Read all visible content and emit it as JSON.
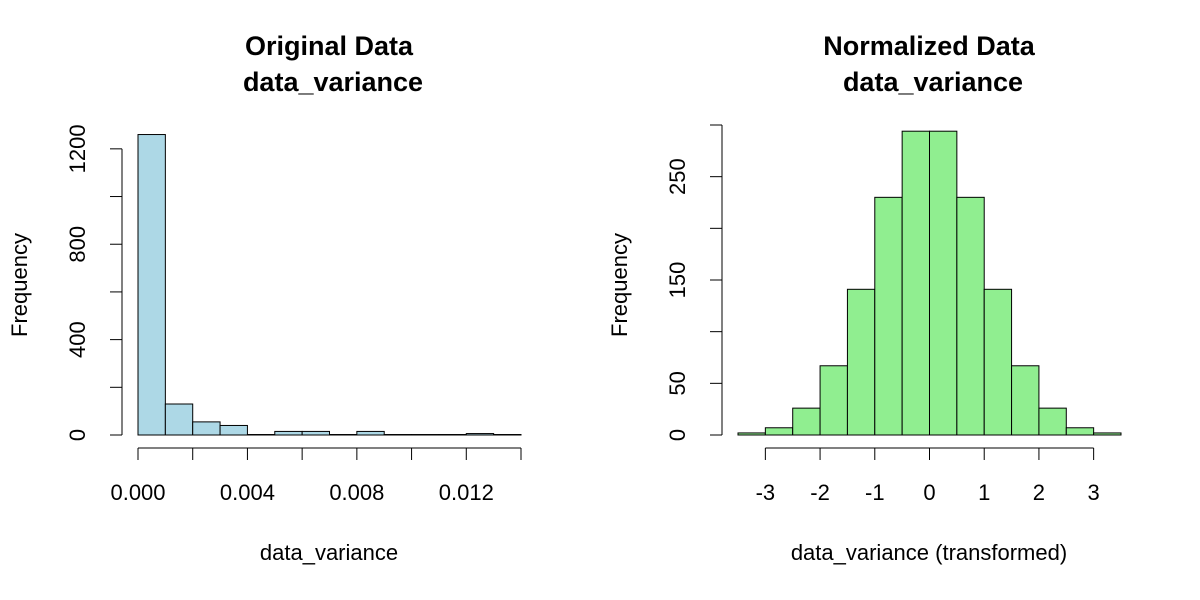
{
  "chart_data": [
    {
      "type": "bar",
      "title_line1": "Original Data",
      "title_line2": "data_variance",
      "xlabel": "data_variance",
      "ylabel": "Frequency",
      "bar_color": "#ADD8E6",
      "bin_edges": [
        0.0,
        0.001,
        0.002,
        0.003,
        0.004,
        0.005,
        0.006,
        0.007,
        0.008,
        0.009,
        0.01,
        0.011,
        0.012,
        0.013,
        0.014
      ],
      "values": [
        1260,
        130,
        55,
        40,
        2,
        15,
        15,
        2,
        15,
        2,
        2,
        2,
        6,
        2
      ],
      "xlim": [
        0.0,
        0.014
      ],
      "ylim": [
        0,
        1300
      ],
      "x_ticks": [
        0.0,
        0.002,
        0.004,
        0.006,
        0.008,
        0.01,
        0.012,
        0.014
      ],
      "x_tick_labels": [
        "0.000",
        "",
        "0.004",
        "",
        "0.008",
        "",
        "0.012",
        ""
      ],
      "y_ticks": [
        0,
        200,
        400,
        600,
        800,
        1000,
        1200
      ],
      "y_tick_labels": [
        "0",
        "",
        "400",
        "",
        "800",
        "",
        "1200"
      ]
    },
    {
      "type": "bar",
      "title_line1": "Normalized Data",
      "title_line2": "data_variance",
      "xlabel": "data_variance (transformed)",
      "ylabel": "Frequency",
      "bar_color": "#90EE90",
      "bin_edges": [
        -3.5,
        -3.0,
        -2.5,
        -2.0,
        -1.5,
        -1.0,
        -0.5,
        0.0,
        0.5,
        1.0,
        1.5,
        2.0,
        2.5,
        3.0,
        3.5
      ],
      "values": [
        2,
        7,
        26,
        67,
        141,
        230,
        294,
        294,
        230,
        141,
        67,
        26,
        7,
        2
      ],
      "xlim": [
        -3.5,
        3.5
      ],
      "ylim": [
        0,
        300
      ],
      "x_ticks": [
        -3,
        -2,
        -1,
        0,
        1,
        2,
        3
      ],
      "x_tick_labels": [
        "-3",
        "-2",
        "-1",
        "0",
        "1",
        "2",
        "3"
      ],
      "y_ticks": [
        0,
        50,
        100,
        150,
        200,
        250,
        300
      ],
      "y_tick_labels": [
        "0",
        "50",
        "",
        "150",
        "",
        "250",
        ""
      ]
    }
  ]
}
